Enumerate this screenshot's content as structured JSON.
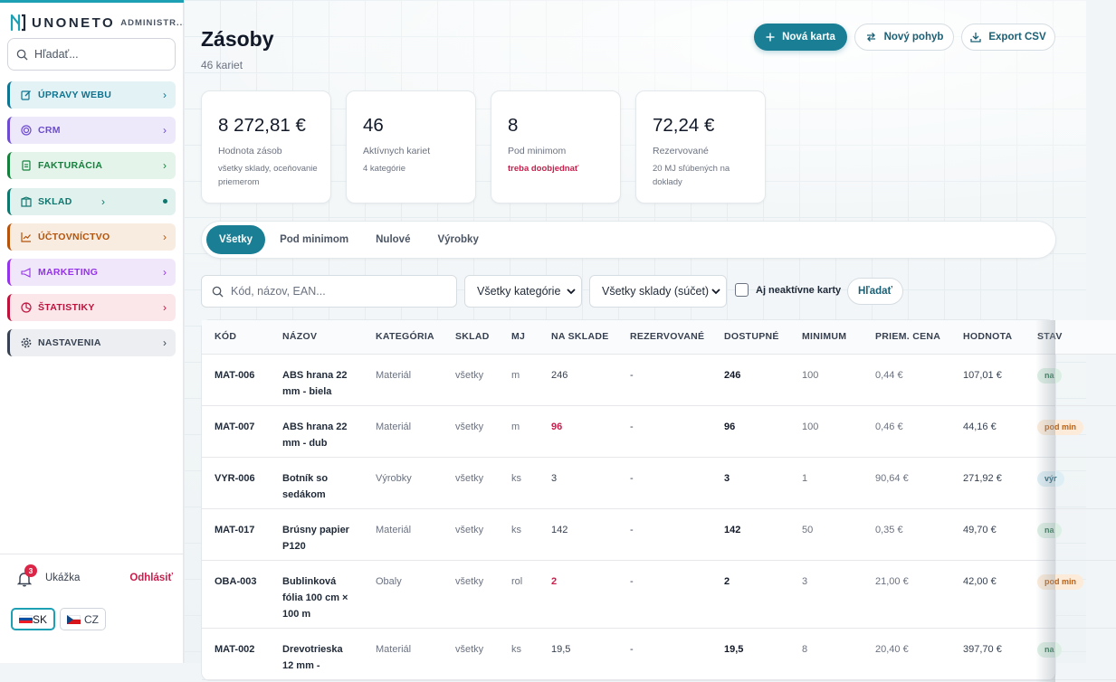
{
  "brand": {
    "name": "UNONETO",
    "subtitle": "ADMINISTR..."
  },
  "sidebar": {
    "search_placeholder": "Hľadať...",
    "items": [
      {
        "label": "ÚPRAVY WEBU",
        "icon": "edit-icon",
        "color": "#0e7490",
        "bg": "#e3f2f5"
      },
      {
        "label": "CRM",
        "icon": "target-icon",
        "color": "#6d4bd1",
        "bg": "#ede9fb"
      },
      {
        "label": "FAKTURÁCIA",
        "icon": "invoice-icon",
        "color": "#15803d",
        "bg": "#e4f4ea"
      },
      {
        "label": "SKLAD",
        "icon": "warehouse-icon",
        "color": "#0f766e",
        "bg": "#e1f1ee"
      },
      {
        "label": "ÚČTOVNÍCTVO",
        "icon": "chart-line-icon",
        "color": "#b45309",
        "bg": "#f8ece1"
      },
      {
        "label": "MARKETING",
        "icon": "megaphone-icon",
        "color": "#9333ea",
        "bg": "#f1e7fb"
      },
      {
        "label": "ŠTATISTIKY",
        "icon": "pie-chart-icon",
        "color": "#be123c",
        "bg": "#fbe6ea"
      },
      {
        "label": "NASTAVENIA",
        "icon": "gear-icon",
        "color": "#374151",
        "bg": "#eceef1"
      }
    ],
    "notifications_count": "3",
    "user_name": "Ukážka",
    "logout_label": "Odhlásiť",
    "languages": [
      {
        "code": "SK",
        "active": true
      },
      {
        "code": "CZ",
        "active": false
      }
    ]
  },
  "header": {
    "title": "Zásoby",
    "subtitle": "46 kariet",
    "buttons": {
      "new_card": "Nová karta",
      "new_movement": "Nový pohyb",
      "export": "Export CSV"
    }
  },
  "stats": [
    {
      "value": "8 272,81 €",
      "label": "Hodnota zásob",
      "note": "všetky sklady, oceňovanie priemerom",
      "warn": false
    },
    {
      "value": "46",
      "label": "Aktívnych kariet",
      "note": "4 kategórie",
      "warn": false
    },
    {
      "value": "8",
      "label": "Pod minimom",
      "note": "treba doobjednať",
      "warn": true
    },
    {
      "value": "72,24 €",
      "label": "Rezervované",
      "note": "20 MJ sľúbených na doklady",
      "warn": false
    }
  ],
  "tabs": [
    "Všetky",
    "Pod minimom",
    "Nulové",
    "Výrobky"
  ],
  "filters": {
    "search_placeholder": "Kód, názov, EAN...",
    "category_select": "Všetky kategórie",
    "warehouse_select": "Všetky sklady (súčet)",
    "inactive_label": "Aj neaktívne karty",
    "search_button": "Hľadať"
  },
  "table": {
    "columns": [
      "KÓD",
      "NÁZOV",
      "KATEGÓRIA",
      "SKLAD",
      "MJ",
      "NA SKLADE",
      "REZERVOVANÉ",
      "DOSTUPNÉ",
      "MINIMUM",
      "PRIEM. CENA",
      "HODNOTA",
      "STAV"
    ],
    "rows": [
      {
        "code": "MAT-006",
        "name": "ABS hrana 22 mm - biela",
        "category": "Materiál",
        "warehouse": "všetky",
        "unit": "m",
        "stock": "246",
        "low": false,
        "reserved": "-",
        "available": "246",
        "minimum": "100",
        "avg_price": "0,44 €",
        "value": "107,01 €",
        "status": "na",
        "status_type": "ok"
      },
      {
        "code": "MAT-007",
        "name": "ABS hrana 22 mm - dub",
        "category": "Materiál",
        "warehouse": "všetky",
        "unit": "m",
        "stock": "96",
        "low": true,
        "reserved": "-",
        "available": "96",
        "minimum": "100",
        "avg_price": "0,46 €",
        "value": "44,16 €",
        "status": "pod min",
        "status_type": "low"
      },
      {
        "code": "VYR-006",
        "name": "Botník so sedákom",
        "category": "Výrobky",
        "warehouse": "všetky",
        "unit": "ks",
        "stock": "3",
        "low": false,
        "reserved": "-",
        "available": "3",
        "minimum": "1",
        "avg_price": "90,64 €",
        "value": "271,92 €",
        "status": "výr",
        "status_type": "prod"
      },
      {
        "code": "MAT-017",
        "name": "Brúsny papier P120",
        "category": "Materiál",
        "warehouse": "všetky",
        "unit": "ks",
        "stock": "142",
        "low": false,
        "reserved": "-",
        "available": "142",
        "minimum": "50",
        "avg_price": "0,35 €",
        "value": "49,70 €",
        "status": "na",
        "status_type": "ok"
      },
      {
        "code": "OBA-003",
        "name": "Bublinková fólia 100 cm × 100 m",
        "category": "Obaly",
        "warehouse": "všetky",
        "unit": "rol",
        "stock": "2",
        "low": true,
        "reserved": "-",
        "available": "2",
        "minimum": "3",
        "avg_price": "21,00 €",
        "value": "42,00 €",
        "status": "pod min",
        "status_type": "low"
      },
      {
        "code": "MAT-002",
        "name": "Drevotrieska 12 mm -",
        "category": "Materiál",
        "warehouse": "všetky",
        "unit": "ks",
        "stock": "19,5",
        "low": false,
        "reserved": "-",
        "available": "19,5",
        "minimum": "8",
        "avg_price": "20,40 €",
        "value": "397,70 €",
        "status": "na",
        "status_type": "ok"
      }
    ]
  }
}
